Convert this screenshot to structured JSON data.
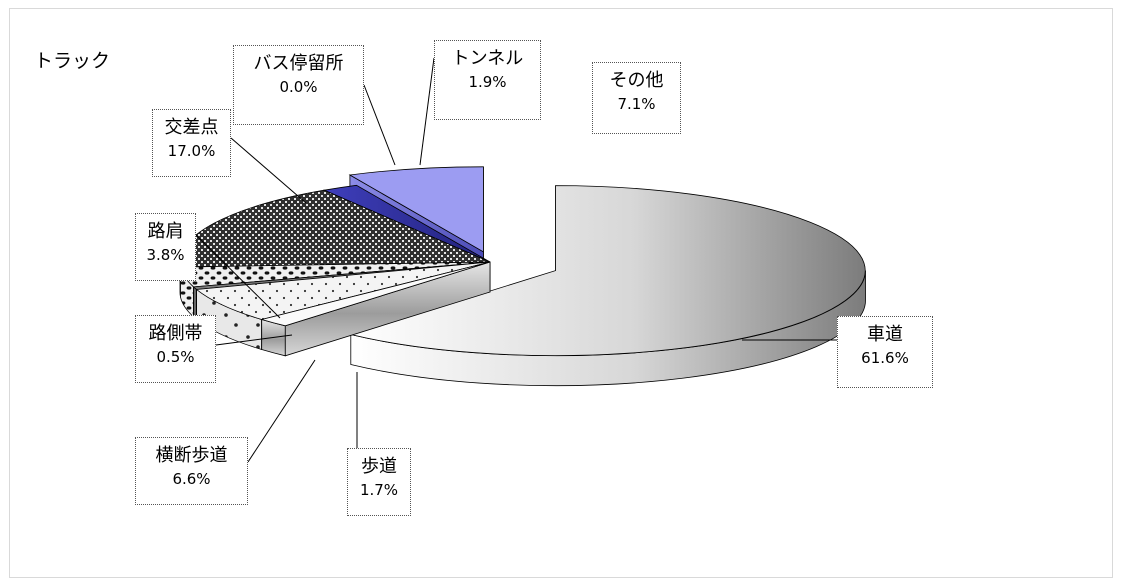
{
  "chart_data": {
    "type": "pie",
    "title": "トラック",
    "slices": [
      {
        "label": "車道",
        "value": 61.6,
        "value_label": "61.6%",
        "color": "#f3f3f3"
      },
      {
        "label": "歩道",
        "value": 1.7,
        "value_label": "1.7%",
        "color": "#bdbdbd"
      },
      {
        "label": "横断歩道",
        "value": 6.6,
        "value_label": "6.6%",
        "color": "#ececec"
      },
      {
        "label": "路側帯",
        "value": 0.5,
        "value_label": "0.5%",
        "color": "#8a8a8a"
      },
      {
        "label": "路肩",
        "value": 3.8,
        "value_label": "3.8%",
        "color": "#e2e2e2"
      },
      {
        "label": "交差点",
        "value": 17.0,
        "value_label": "17.0%",
        "color": "#2f2f2f"
      },
      {
        "label": "バス停留所",
        "value": 0.0,
        "value_label": "0.0%",
        "color": "#555555"
      },
      {
        "label": "トンネル",
        "value": 1.9,
        "value_label": "1.9%",
        "color": "#4a4ad2"
      },
      {
        "label": "その他",
        "value": 7.1,
        "value_label": "7.1%",
        "color": "#9a9af4"
      }
    ],
    "legend": "none"
  }
}
